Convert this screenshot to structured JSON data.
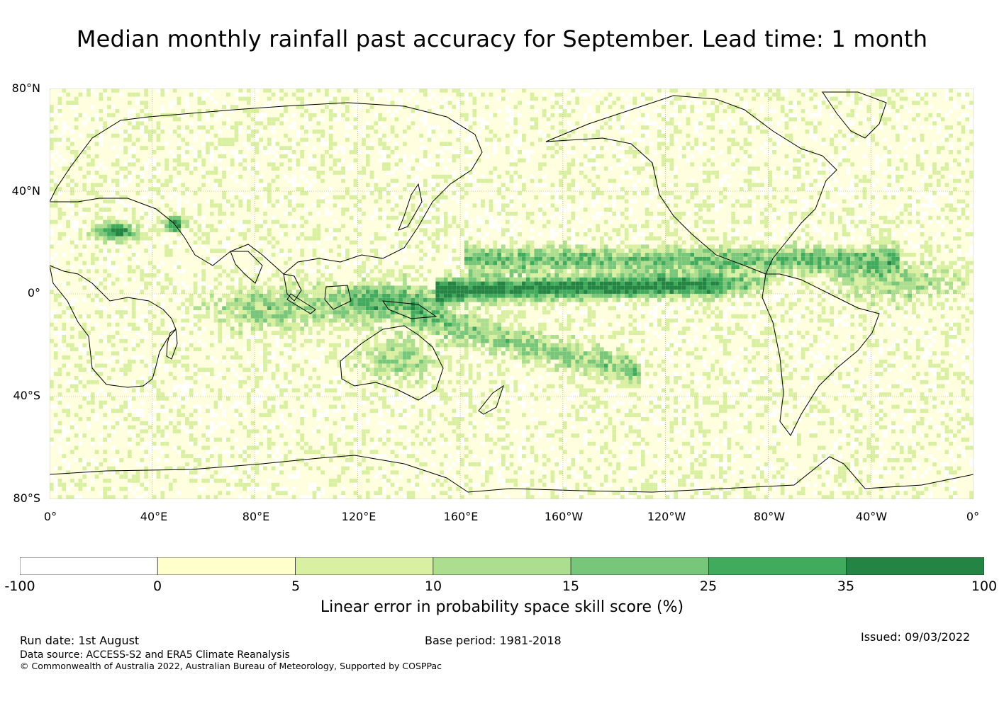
{
  "title": "Median monthly rainfall past accuracy for September. Lead time: 1 month",
  "map": {
    "lat_labels": [
      "80°N",
      "40°N",
      "0°",
      "40°S",
      "80°S"
    ],
    "lat_values": [
      80,
      40,
      0,
      -40,
      -80
    ],
    "lon_labels": [
      "0°",
      "40°E",
      "80°E",
      "120°E",
      "160°E",
      "160°W",
      "120°W",
      "80°W",
      "40°W",
      "0°"
    ],
    "lon_values": [
      0,
      40,
      80,
      120,
      160,
      200,
      240,
      280,
      320,
      360
    ],
    "lat_range": [
      -80,
      80
    ],
    "lon_range": [
      0,
      360
    ],
    "gridlines": true
  },
  "colorbar": {
    "ticks": [
      "-100",
      "0",
      "5",
      "10",
      "15",
      "25",
      "35",
      "100"
    ],
    "colors": [
      "#ffffff",
      "#ffffcc",
      "#d9f0a3",
      "#addd8e",
      "#78c679",
      "#41ab5d",
      "#238443"
    ],
    "label": "Linear error in probability space skill score (%)"
  },
  "footer": {
    "run_date": "Run date: 1st August",
    "base_period": "Base period: 1981-2018",
    "issued": "Issued: 09/03/2022",
    "data_source": "Data source: ACCESS-S2 and ERA5 Climate Reanalysis",
    "copyright": "© Commonwealth of Australia 2022, Australian Bureau of Meteorology, Supported by COSPPac"
  }
}
